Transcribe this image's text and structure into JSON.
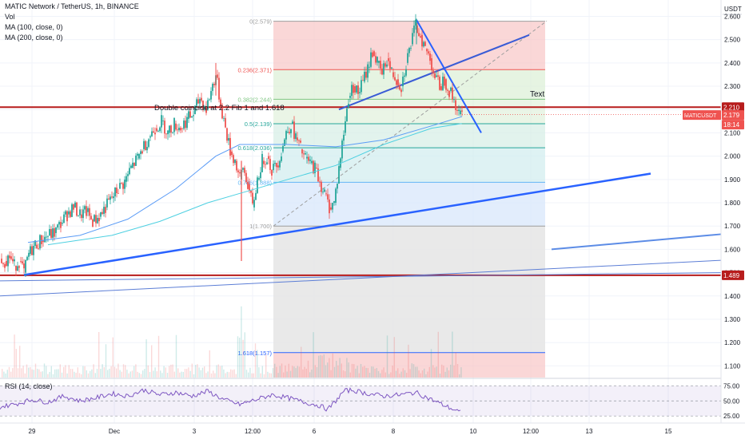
{
  "header": {
    "symbol_line": "MATIC Network / TetherUS, 1h, BINANCE",
    "vol": "Vol",
    "ma100": "MA (100, close, 0)",
    "ma200": "MA (200, close, 0)",
    "rsi": "RSI (14, close)"
  },
  "currency_label": "USDT",
  "annotations": {
    "coincide": "Double coincide at 2.2 Fib 1 and 1.618",
    "text_label": "Text"
  },
  "price_badges": {
    "level_high": "2.210",
    "symbol": "MATICUSDT",
    "last": "2.179",
    "countdown": "18:14",
    "level_low": "1.489"
  },
  "colors": {
    "up": "#26a69a",
    "down": "#ef5350",
    "trend": "#2962ff",
    "level": "#b71c1c",
    "ma100": "#5b9cf6",
    "ma200": "#4dd0e1",
    "rsi": "#7e57c2"
  },
  "chart_data": {
    "type": "candlestick",
    "title": "MATIC Network / TetherUS, 1h, BINANCE",
    "ylim": [
      1.05,
      2.67
    ],
    "y_ticks": [
      "2.600",
      "2.500",
      "2.400",
      "2.300",
      "2.200",
      "2.100",
      "2.000",
      "1.900",
      "1.800",
      "1.700",
      "1.600",
      "1.500",
      "1.400",
      "1.300",
      "1.200",
      "1.100"
    ],
    "x_ticks": [
      "29",
      "Dec",
      "3",
      "12:00",
      "6",
      "8",
      "10",
      "12:00",
      "13",
      "15"
    ],
    "close_path": [
      [
        0,
        1.56
      ],
      [
        6,
        1.55
      ],
      [
        12,
        1.57
      ],
      [
        18,
        1.53
      ],
      [
        24,
        1.55
      ],
      [
        30,
        1.5
      ],
      [
        36,
        1.58
      ],
      [
        44,
        1.62
      ],
      [
        52,
        1.64
      ],
      [
        60,
        1.66
      ],
      [
        68,
        1.67
      ],
      [
        76,
        1.71
      ],
      [
        84,
        1.75
      ],
      [
        92,
        1.78
      ],
      [
        100,
        1.75
      ],
      [
        108,
        1.76
      ],
      [
        116,
        1.72
      ],
      [
        124,
        1.74
      ],
      [
        132,
        1.78
      ],
      [
        140,
        1.82
      ],
      [
        148,
        1.86
      ],
      [
        156,
        1.89
      ],
      [
        164,
        1.95
      ],
      [
        172,
        1.99
      ],
      [
        178,
        2.03
      ],
      [
        186,
        2.08
      ],
      [
        194,
        2.12
      ],
      [
        202,
        2.15
      ],
      [
        210,
        2.1
      ],
      [
        218,
        2.14
      ],
      [
        226,
        2.12
      ],
      [
        234,
        2.16
      ],
      [
        242,
        2.18
      ],
      [
        250,
        2.25
      ],
      [
        258,
        2.2
      ],
      [
        264,
        2.28
      ],
      [
        270,
        2.35
      ],
      [
        276,
        2.22
      ],
      [
        282,
        2.12
      ],
      [
        288,
        2.02
      ],
      [
        294,
        1.98
      ],
      [
        300,
        1.9
      ],
      [
        304,
        1.95
      ],
      [
        310,
        1.88
      ],
      [
        316,
        1.78
      ],
      [
        322,
        1.9
      ],
      [
        328,
        1.98
      ],
      [
        334,
        2.0
      ],
      [
        340,
        1.94
      ],
      [
        346,
        1.96
      ],
      [
        352,
        2.02
      ],
      [
        358,
        2.1
      ],
      [
        364,
        2.14
      ],
      [
        370,
        2.08
      ],
      [
        376,
        2.03
      ],
      [
        382,
        1.99
      ],
      [
        388,
        1.97
      ],
      [
        394,
        1.95
      ],
      [
        400,
        1.89
      ],
      [
        406,
        1.84
      ],
      [
        412,
        1.78
      ],
      [
        418,
        1.8
      ],
      [
        424,
        1.95
      ],
      [
        430,
        2.1
      ],
      [
        436,
        2.25
      ],
      [
        442,
        2.3
      ],
      [
        448,
        2.27
      ],
      [
        454,
        2.32
      ],
      [
        460,
        2.38
      ],
      [
        466,
        2.45
      ],
      [
        472,
        2.4
      ],
      [
        478,
        2.35
      ],
      [
        484,
        2.42
      ],
      [
        490,
        2.36
      ],
      [
        496,
        2.33
      ],
      [
        502,
        2.3
      ],
      [
        508,
        2.4
      ],
      [
        514,
        2.48
      ],
      [
        520,
        2.56
      ],
      [
        526,
        2.52
      ],
      [
        532,
        2.46
      ],
      [
        538,
        2.42
      ],
      [
        544,
        2.34
      ],
      [
        550,
        2.3
      ],
      [
        556,
        2.33
      ],
      [
        562,
        2.28
      ],
      [
        568,
        2.24
      ],
      [
        574,
        2.18
      ],
      [
        578,
        2.179
      ]
    ],
    "moving_averages": [
      {
        "name": "MA (100, close, 0)",
        "points": [
          [
            35,
            1.63
          ],
          [
            100,
            1.66
          ],
          [
            160,
            1.73
          ],
          [
            220,
            1.86
          ],
          [
            270,
            2.0
          ],
          [
            300,
            2.05
          ],
          [
            360,
            2.05
          ],
          [
            420,
            2.04
          ],
          [
            480,
            2.07
          ],
          [
            540,
            2.13
          ],
          [
            578,
            2.17
          ]
        ]
      },
      {
        "name": "MA (200, close, 0)",
        "points": [
          [
            60,
            1.62
          ],
          [
            140,
            1.66
          ],
          [
            200,
            1.72
          ],
          [
            260,
            1.8
          ],
          [
            300,
            1.84
          ],
          [
            360,
            1.9
          ],
          [
            420,
            1.96
          ],
          [
            480,
            2.05
          ],
          [
            540,
            2.12
          ],
          [
            578,
            2.14
          ]
        ]
      }
    ],
    "fibonacci": {
      "x_range": [
        342,
        682
      ],
      "levels": [
        {
          "ratio": "0",
          "price": 2.579,
          "label": "0(2.579)"
        },
        {
          "ratio": "0.236",
          "price": 2.371,
          "label": "0.236(2.371)"
        },
        {
          "ratio": "0.382",
          "price": 2.244,
          "label": "0.382(2.244)"
        },
        {
          "ratio": "0.5",
          "price": 2.139,
          "label": "0.5(2.139)"
        },
        {
          "ratio": "0.618",
          "price": 2.036,
          "label": "0.618(2.036)"
        },
        {
          "ratio": "0.786",
          "price": 1.888,
          "label": "0.786(1.888)"
        },
        {
          "ratio": "1",
          "price": 1.7,
          "label": "1(1.700)"
        },
        {
          "ratio": "1.618",
          "price": 1.157,
          "label": "1.618(1.157)"
        }
      ]
    },
    "horizontal_levels": [
      2.21,
      1.489
    ],
    "rsi": {
      "ylim": [
        20,
        82
      ],
      "y_ticks": [
        "75.00",
        "50.00",
        "25.00"
      ],
      "values": [
        [
          0,
          40
        ],
        [
          20,
          45
        ],
        [
          40,
          52
        ],
        [
          60,
          48
        ],
        [
          80,
          58
        ],
        [
          100,
          50
        ],
        [
          120,
          55
        ],
        [
          140,
          62
        ],
        [
          160,
          58
        ],
        [
          180,
          68
        ],
        [
          200,
          60
        ],
        [
          220,
          64
        ],
        [
          240,
          58
        ],
        [
          260,
          66
        ],
        [
          280,
          52
        ],
        [
          300,
          44
        ],
        [
          320,
          52
        ],
        [
          340,
          60
        ],
        [
          360,
          55
        ],
        [
          380,
          48
        ],
        [
          400,
          42
        ],
        [
          410,
          36
        ],
        [
          420,
          50
        ],
        [
          430,
          66
        ],
        [
          440,
          68
        ],
        [
          460,
          62
        ],
        [
          480,
          58
        ],
        [
          500,
          60
        ],
        [
          520,
          64
        ],
        [
          540,
          52
        ],
        [
          560,
          40
        ],
        [
          578,
          30
        ]
      ]
    }
  }
}
